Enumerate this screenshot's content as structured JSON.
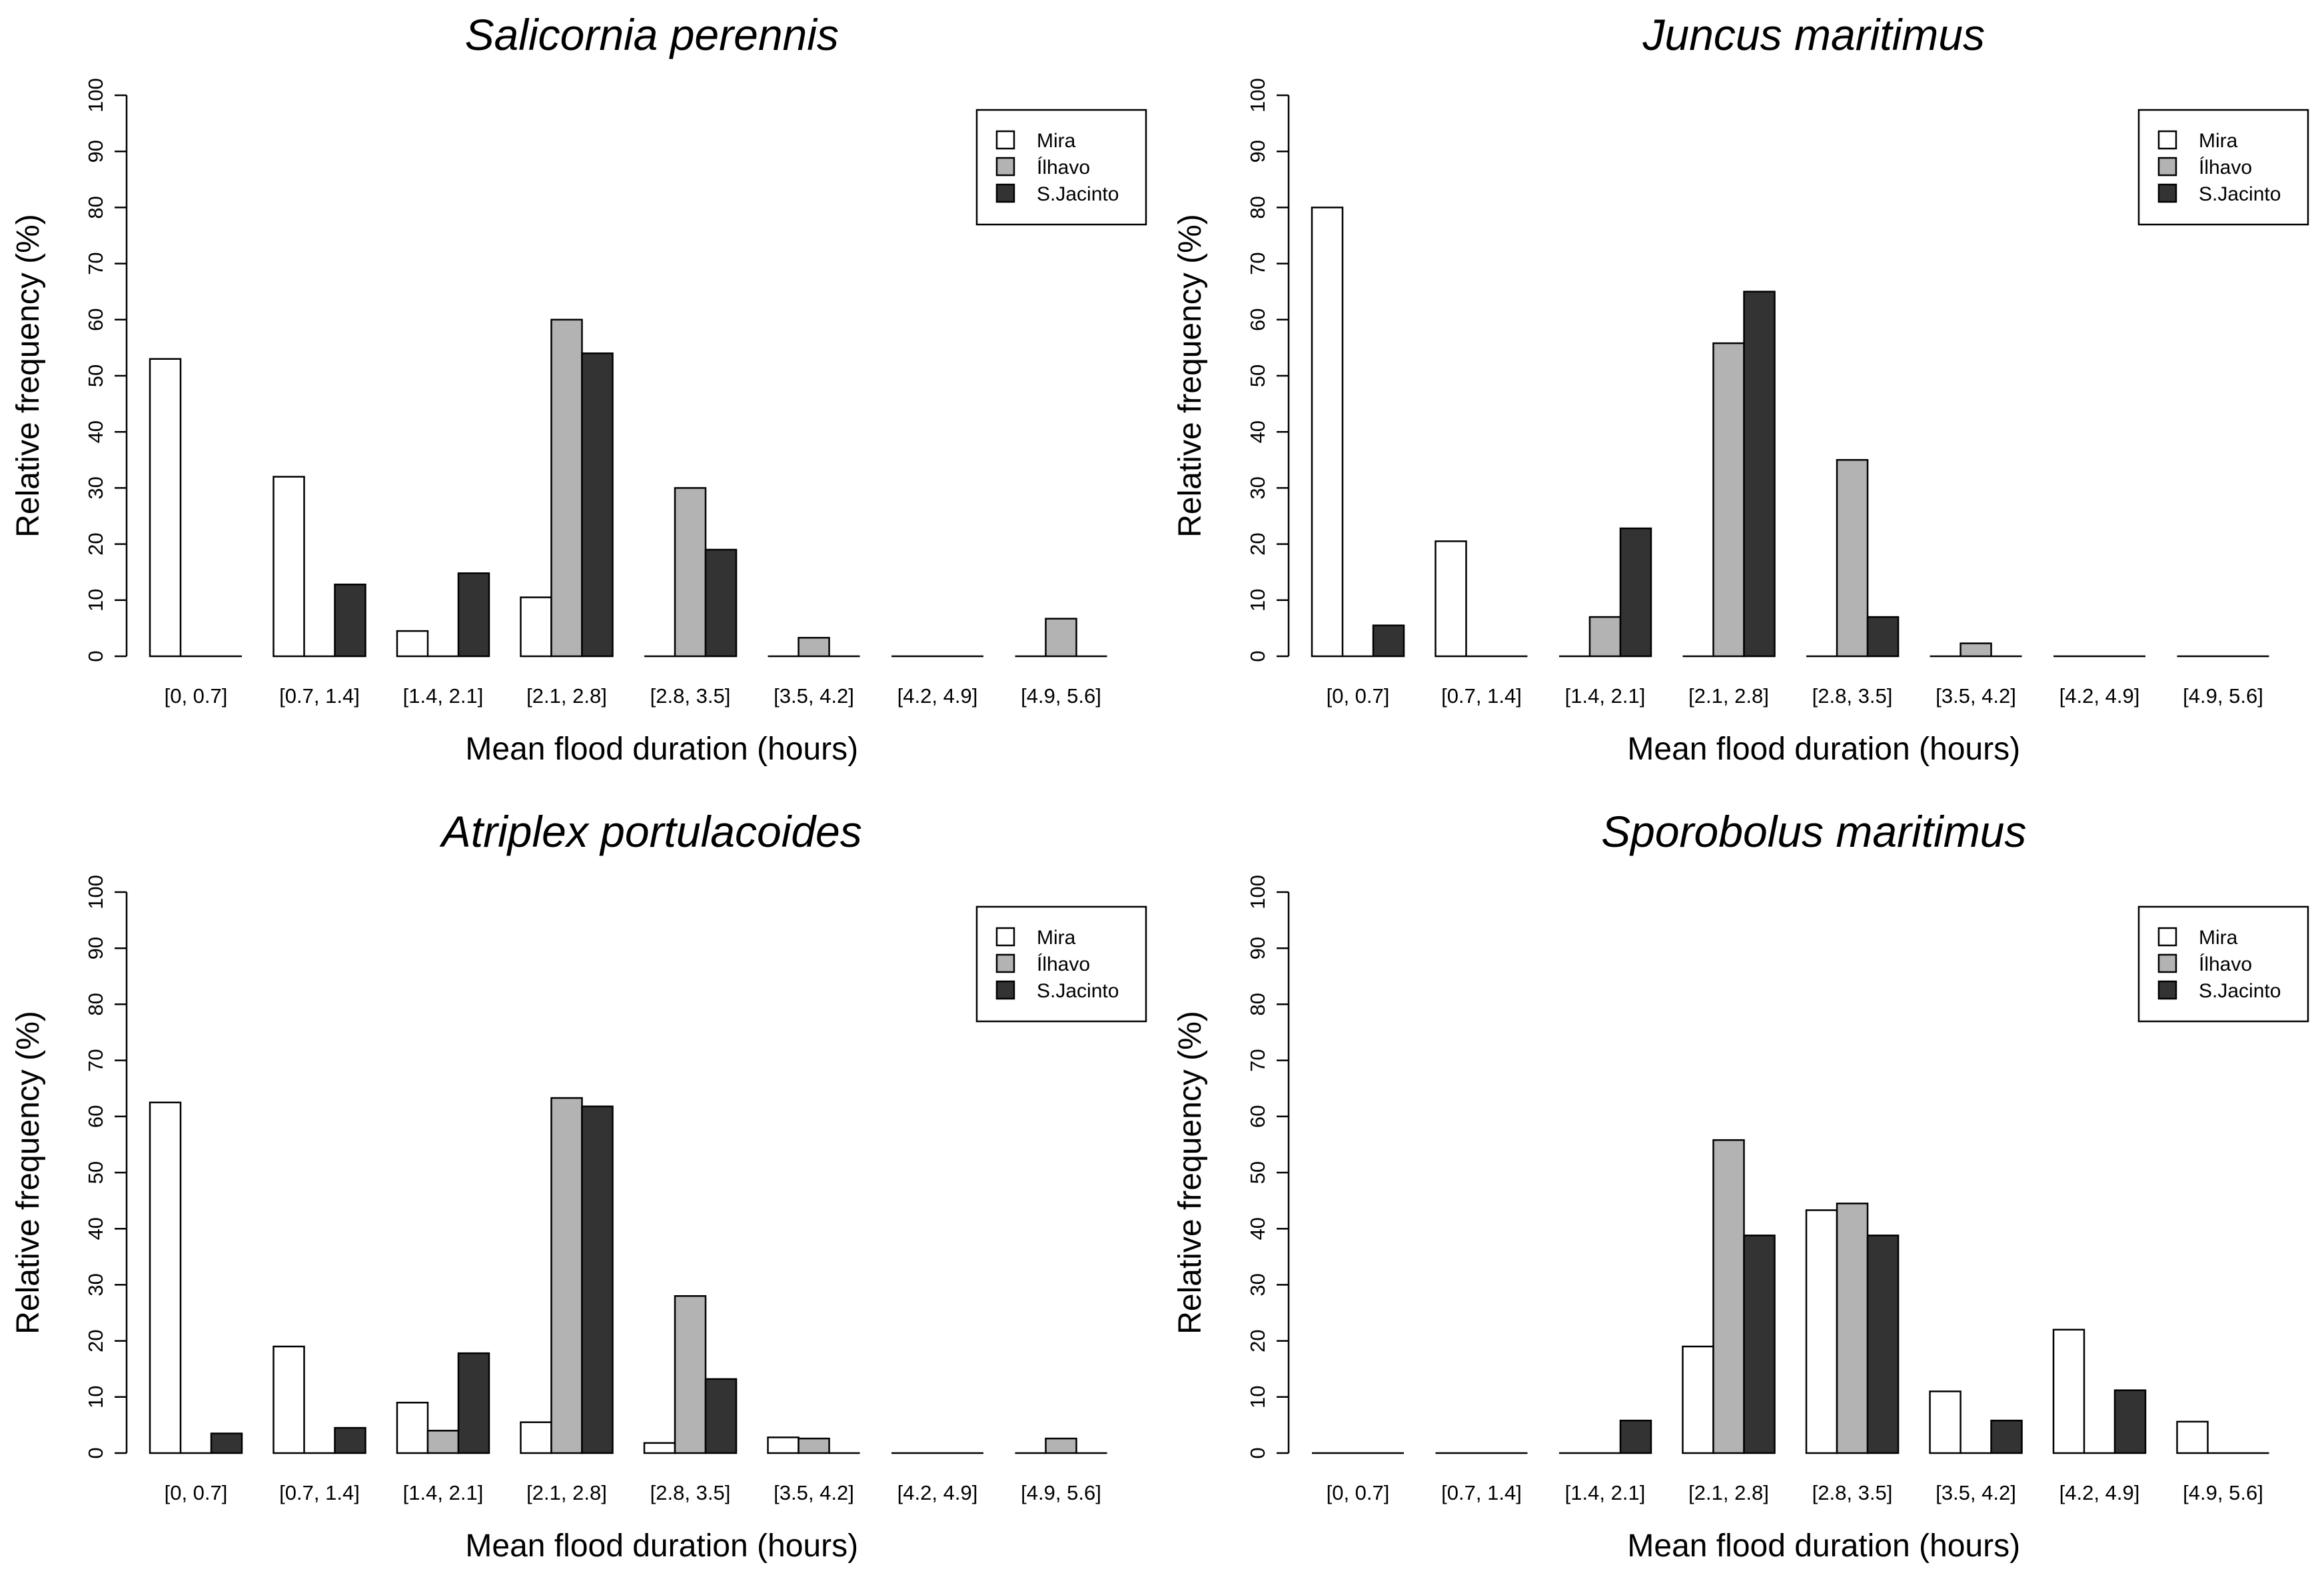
{
  "chart_data": [
    {
      "type": "bar",
      "title": "Salicornia perennis",
      "xlabel": "Mean flood duration (hours)",
      "ylabel": "Relative frequency (%)",
      "ylim": [
        0,
        100
      ],
      "yticks": [
        0,
        10,
        20,
        30,
        40,
        50,
        60,
        70,
        80,
        90,
        100
      ],
      "categories": [
        "[0, 0.7]",
        "[0.7, 1.4]",
        "[1.4, 2.1]",
        "[2.1, 2.8]",
        "[2.8, 3.5]",
        "[3.5, 4.2]",
        "[4.2, 4.9]",
        "[4.9, 5.6]"
      ],
      "series": [
        {
          "name": "Mira",
          "color": "#ffffff",
          "values": [
            53,
            32,
            4.5,
            10.5,
            0,
            0,
            0,
            0
          ]
        },
        {
          "name": "Ílhavo",
          "color": "#b3b3b3",
          "values": [
            0,
            0,
            0,
            60,
            30,
            3.3,
            0,
            6.7
          ]
        },
        {
          "name": "S.Jacinto",
          "color": "#333333",
          "values": [
            0,
            12.8,
            14.8,
            54,
            19,
            0,
            0,
            0
          ]
        }
      ],
      "legend_position": "top-right",
      "grid": false
    },
    {
      "type": "bar",
      "title": "Juncus maritimus",
      "xlabel": "Mean flood duration (hours)",
      "ylabel": "Relative frequency (%)",
      "ylim": [
        0,
        100
      ],
      "yticks": [
        0,
        10,
        20,
        30,
        40,
        50,
        60,
        70,
        80,
        90,
        100
      ],
      "categories": [
        "[0, 0.7]",
        "[0.7, 1.4]",
        "[1.4, 2.1]",
        "[2.1, 2.8]",
        "[2.8, 3.5]",
        "[3.5, 4.2]",
        "[4.2, 4.9]",
        "[4.9, 5.6]"
      ],
      "series": [
        {
          "name": "Mira",
          "color": "#ffffff",
          "values": [
            80,
            20.5,
            0,
            0,
            0,
            0,
            0,
            0
          ]
        },
        {
          "name": "Ílhavo",
          "color": "#b3b3b3",
          "values": [
            0,
            0,
            7,
            55.8,
            35,
            2.3,
            0,
            0
          ]
        },
        {
          "name": "S.Jacinto",
          "color": "#333333",
          "values": [
            5.5,
            0,
            22.8,
            65,
            7,
            0,
            0,
            0
          ]
        }
      ],
      "legend_position": "top-right",
      "grid": false
    },
    {
      "type": "bar",
      "title": "Atriplex portulacoides",
      "xlabel": "Mean flood duration (hours)",
      "ylabel": "Relative frequency (%)",
      "ylim": [
        0,
        100
      ],
      "yticks": [
        0,
        10,
        20,
        30,
        40,
        50,
        60,
        70,
        80,
        90,
        100
      ],
      "categories": [
        "[0, 0.7]",
        "[0.7, 1.4]",
        "[1.4, 2.1]",
        "[2.1, 2.8]",
        "[2.8, 3.5]",
        "[3.5, 4.2]",
        "[4.2, 4.9]",
        "[4.9, 5.6]"
      ],
      "series": [
        {
          "name": "Mira",
          "color": "#ffffff",
          "values": [
            62.5,
            19,
            9,
            5.5,
            1.8,
            2.8,
            0,
            0
          ]
        },
        {
          "name": "Ílhavo",
          "color": "#b3b3b3",
          "values": [
            0,
            0,
            4,
            63.3,
            28,
            2.6,
            0,
            2.6
          ]
        },
        {
          "name": "S.Jacinto",
          "color": "#333333",
          "values": [
            3.5,
            4.5,
            17.8,
            61.8,
            13.2,
            0,
            0,
            0
          ]
        }
      ],
      "legend_position": "top-right",
      "grid": false
    },
    {
      "type": "bar",
      "title": "Sporobolus maritimus",
      "xlabel": "Mean flood duration (hours)",
      "ylabel": "Relative frequency (%)",
      "ylim": [
        0,
        100
      ],
      "yticks": [
        0,
        10,
        20,
        30,
        40,
        50,
        60,
        70,
        80,
        90,
        100
      ],
      "categories": [
        "[0, 0.7]",
        "[0.7, 1.4]",
        "[1.4, 2.1]",
        "[2.1, 2.8]",
        "[2.8, 3.5]",
        "[3.5, 4.2]",
        "[4.2, 4.9]",
        "[4.9, 5.6]"
      ],
      "series": [
        {
          "name": "Mira",
          "color": "#ffffff",
          "values": [
            0,
            0,
            0,
            19,
            43.3,
            11,
            22,
            5.6
          ]
        },
        {
          "name": "Ílhavo",
          "color": "#b3b3b3",
          "values": [
            0,
            0,
            0,
            55.8,
            44.5,
            0,
            0,
            0
          ]
        },
        {
          "name": "S.Jacinto",
          "color": "#333333",
          "values": [
            0,
            0,
            5.8,
            38.8,
            38.8,
            5.8,
            11.2,
            0
          ]
        }
      ],
      "legend_position": "top-right",
      "grid": false
    }
  ]
}
